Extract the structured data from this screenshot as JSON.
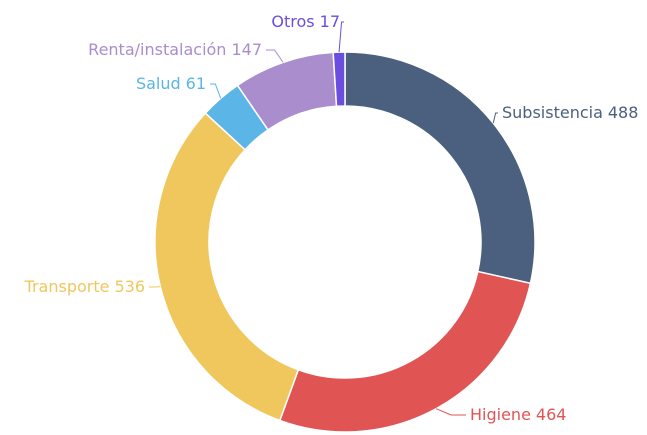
{
  "chart_data": {
    "type": "donut",
    "categories": [
      "Subsistencia",
      "Higiene",
      "Transporte",
      "Salud",
      "Renta/instalación",
      "Otros"
    ],
    "values": [
      488,
      464,
      536,
      61,
      147,
      17
    ],
    "colors": [
      "#4b607e",
      "#e05454",
      "#f0c75c",
      "#5bb5e6",
      "#a98dcc",
      "#6a4ee0"
    ]
  }
}
